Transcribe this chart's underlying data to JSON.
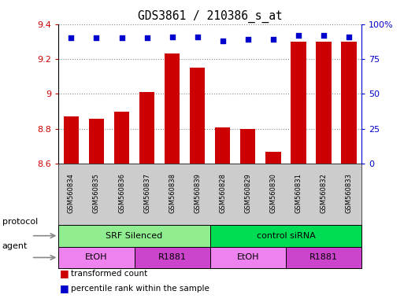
{
  "title": "GDS3861 / 210386_s_at",
  "samples": [
    "GSM560834",
    "GSM560835",
    "GSM560836",
    "GSM560837",
    "GSM560838",
    "GSM560839",
    "GSM560828",
    "GSM560829",
    "GSM560830",
    "GSM560831",
    "GSM560832",
    "GSM560833"
  ],
  "transformed_count": [
    8.87,
    8.86,
    8.9,
    9.01,
    9.23,
    9.15,
    8.81,
    8.8,
    8.67,
    9.3,
    9.3,
    9.3
  ],
  "percentile_rank": [
    90,
    90,
    90,
    90,
    91,
    91,
    88,
    89,
    89,
    92,
    92,
    91
  ],
  "ylim_left": [
    8.6,
    9.4
  ],
  "ylim_right": [
    0,
    100
  ],
  "yticks_left": [
    8.6,
    8.8,
    9.0,
    9.2,
    9.4
  ],
  "yticks_right": [
    0,
    25,
    50,
    75,
    100
  ],
  "bar_color": "#cc0000",
  "dot_color": "#0000cc",
  "bar_width": 0.6,
  "protocol_groups": [
    {
      "label": "SRF Silenced",
      "start": 0,
      "end": 5,
      "color": "#90ee90"
    },
    {
      "label": "control siRNA",
      "start": 6,
      "end": 11,
      "color": "#00dd55"
    }
  ],
  "agent_groups": [
    {
      "label": "EtOH",
      "start": 0,
      "end": 2,
      "color": "#ee82ee"
    },
    {
      "label": "R1881",
      "start": 3,
      "end": 5,
      "color": "#cc44cc"
    },
    {
      "label": "EtOH",
      "start": 6,
      "end": 8,
      "color": "#ee82ee"
    },
    {
      "label": "R1881",
      "start": 9,
      "end": 11,
      "color": "#cc44cc"
    }
  ],
  "legend_bar_label": "transformed count",
  "legend_dot_label": "percentile rank within the sample",
  "xlabel_protocol": "protocol",
  "xlabel_agent": "agent",
  "background_color": "#ffffff",
  "plot_bg_color": "#ffffff",
  "sample_box_color": "#cccccc",
  "grid_color": "#888888"
}
